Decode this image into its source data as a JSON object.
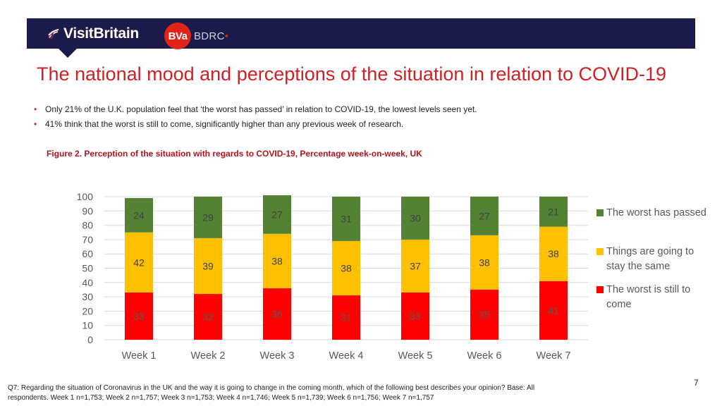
{
  "header": {
    "brand_name": "VisitBritain",
    "partner_mark": "BVa",
    "partner_name": "BDRC",
    "partner_dot": "•",
    "colors": {
      "banner": "#1a1a4b",
      "accent": "#d11f26"
    }
  },
  "title": "The national mood and perceptions of the situation in relation to COVID-19",
  "bullets": [
    "Only 21% of the U.K. population feel that ‘the worst has passed’ in relation to COVID-19, the lowest levels seen yet.",
    "41% think that the worst is still to come, significantly higher than any previous week of research."
  ],
  "bullet_marker": "•",
  "chart_data": {
    "type": "bar",
    "stacked": true,
    "title": "Figure 2.  Perception of the situation with regards to COVID-19, Percentage week-on-week, UK",
    "categories": [
      "Week 1",
      "Week 2",
      "Week 3",
      "Week 4",
      "Week 5",
      "Week 6",
      "Week 7"
    ],
    "series": [
      {
        "name": "The worst is still to come",
        "color": "#ff0000",
        "values": [
          33,
          32,
          36,
          31,
          33,
          35,
          41
        ]
      },
      {
        "name": "Things are going to stay the same",
        "color": "#ffc000",
        "values": [
          42,
          39,
          38,
          38,
          37,
          38,
          38
        ]
      },
      {
        "name": "The worst has passed",
        "color": "#548235",
        "values": [
          24,
          29,
          27,
          31,
          30,
          27,
          21
        ]
      }
    ],
    "y_ticks": [
      0,
      10,
      20,
      30,
      40,
      50,
      60,
      70,
      80,
      90,
      100
    ],
    "ylim": [
      0,
      100
    ],
    "grid": true,
    "legend_position": "right",
    "legend_order": [
      "The worst has passed",
      "Things are going to stay the same",
      "The worst is still to come"
    ]
  },
  "page_number": "7",
  "footnote": "Q7: Regarding the situation of Coronavirus in the UK and the way it is going to change in the coming month, which of the following best describes your opinion? Base: All respondents. Week 1 n=1,753; Week 2 n=1,757; Week 3 n=1,753; Week 4 n=1,746; Week 5 n=1,739; Week 6 n=1,756; Week 7 n=1,757"
}
